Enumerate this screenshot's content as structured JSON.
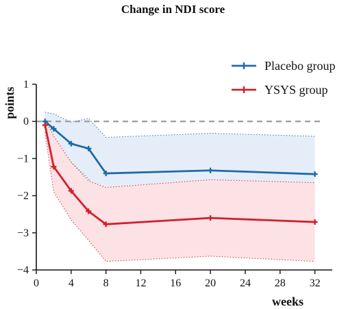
{
  "chart_data": {
    "type": "line",
    "title": "Change in NDI score",
    "xlabel": "weeks",
    "ylabel": "points",
    "xlim": [
      0,
      34
    ],
    "ylim": [
      -4,
      1
    ],
    "xticks": [
      0,
      4,
      8,
      12,
      16,
      20,
      24,
      28,
      32
    ],
    "yticks": [
      1,
      0,
      -1,
      -2,
      -3,
      -4
    ],
    "reference_line": {
      "y": 0,
      "style": "dashed",
      "color": "#a0a0a0"
    },
    "legend": "top-right",
    "series": [
      {
        "name": "Placebo group",
        "color": "#1f6aa8",
        "band_color": "#e5eef8",
        "x": [
          1,
          2,
          4,
          6,
          8,
          20,
          32
        ],
        "y": [
          0,
          -0.2,
          -0.6,
          -0.73,
          -1.4,
          -1.32,
          -1.42
        ],
        "upper": [
          0.25,
          0.2,
          -0.02,
          0.08,
          -0.43,
          -0.32,
          -0.4
        ],
        "lower": [
          -0.15,
          -0.55,
          -1.1,
          -1.55,
          -2.37,
          -2.32,
          -2.45
        ]
      },
      {
        "name": "YSYS group",
        "color": "#d0202e",
        "band_color": "#fce2e4",
        "x": [
          1,
          2,
          4,
          6,
          8,
          20,
          32
        ],
        "y": [
          -0.1,
          -1.22,
          -1.87,
          -2.42,
          -2.77,
          -2.6,
          -2.71
        ],
        "upper": [
          0.05,
          -0.4,
          -1.1,
          -1.6,
          -1.78,
          -1.57,
          -1.65
        ],
        "lower": [
          -0.3,
          -1.9,
          -2.65,
          -3.2,
          -3.77,
          -3.63,
          -3.77
        ]
      }
    ]
  }
}
